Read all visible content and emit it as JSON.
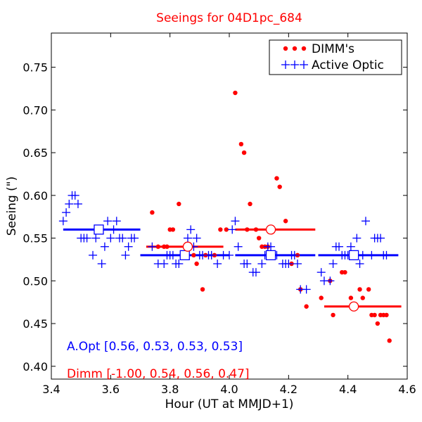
{
  "chart_data": {
    "type": "scatter",
    "title": "Seeings for 04D1pc_684",
    "xlabel": "Hour (UT at MMJD+1)",
    "ylabel": "Seeing (\")",
    "xlim": [
      3.4,
      4.6
    ],
    "ylim": [
      0.385,
      0.79
    ],
    "xticks": [
      "3.4",
      "3.6",
      "3.8",
      "4.0",
      "4.2",
      "4.4",
      "4.6"
    ],
    "xtick_values": [
      3.4,
      3.6,
      3.8,
      4.0,
      4.2,
      4.4,
      4.6
    ],
    "yticks": [
      "0.40",
      "0.45",
      "0.50",
      "0.55",
      "0.60",
      "0.65",
      "0.70",
      "0.75"
    ],
    "ytick_values": [
      0.4,
      0.45,
      0.5,
      0.55,
      0.6,
      0.65,
      0.7,
      0.75
    ],
    "colors": {
      "title": "#ff0000",
      "dimm": "#ff0000",
      "aopt": "#0000ff"
    },
    "legend": {
      "location": "top-right",
      "entries": [
        {
          "label": "DIMM's",
          "marker": "dot",
          "color": "#ff0000"
        },
        {
          "label": "Active Optic",
          "marker": "plus",
          "color": "#0000ff"
        }
      ]
    },
    "series": [
      {
        "name": "DIMM's",
        "marker": "dot",
        "color": "#ff0000",
        "x": [
          3.74,
          3.76,
          3.78,
          3.79,
          3.8,
          3.81,
          3.83,
          3.88,
          3.89,
          3.91,
          3.92,
          3.95,
          3.97,
          3.99,
          4.02,
          4.04,
          4.05,
          4.06,
          4.07,
          4.09,
          4.1,
          4.11,
          4.12,
          4.13,
          4.14,
          4.16,
          4.17,
          4.19,
          4.21,
          4.23,
          4.24,
          4.26,
          4.31,
          4.34,
          4.35,
          4.38,
          4.39,
          4.41,
          4.44,
          4.45,
          4.47,
          4.48,
          4.49,
          4.5,
          4.51,
          4.52,
          4.53,
          4.54
        ],
        "y": [
          0.58,
          0.54,
          0.54,
          0.54,
          0.56,
          0.56,
          0.59,
          0.53,
          0.52,
          0.49,
          0.53,
          0.53,
          0.56,
          0.56,
          0.72,
          0.66,
          0.65,
          0.56,
          0.59,
          0.56,
          0.55,
          0.54,
          0.54,
          0.54,
          0.53,
          0.62,
          0.61,
          0.57,
          0.52,
          0.53,
          0.49,
          0.47,
          0.48,
          0.5,
          0.46,
          0.51,
          0.51,
          0.48,
          0.49,
          0.48,
          0.49,
          0.46,
          0.46,
          0.45,
          0.46,
          0.46,
          0.46,
          0.43
        ]
      },
      {
        "name": "Active Optic",
        "marker": "plus",
        "color": "#0000ff",
        "x": [
          3.44,
          3.45,
          3.46,
          3.47,
          3.48,
          3.49,
          3.5,
          3.51,
          3.52,
          3.54,
          3.55,
          3.57,
          3.58,
          3.59,
          3.6,
          3.61,
          3.62,
          3.63,
          3.64,
          3.65,
          3.66,
          3.67,
          3.68,
          3.74,
          3.76,
          3.78,
          3.79,
          3.8,
          3.81,
          3.82,
          3.83,
          3.85,
          3.86,
          3.87,
          3.88,
          3.89,
          3.9,
          3.91,
          3.93,
          3.94,
          3.96,
          3.98,
          4.0,
          4.01,
          4.02,
          4.03,
          4.05,
          4.06,
          4.08,
          4.09,
          4.11,
          4.12,
          4.13,
          4.14,
          4.16,
          4.18,
          4.19,
          4.2,
          4.21,
          4.22,
          4.23,
          4.24,
          4.26,
          4.31,
          4.32,
          4.34,
          4.35,
          4.36,
          4.37,
          4.38,
          4.39,
          4.4,
          4.41,
          4.43,
          4.44,
          4.45,
          4.46,
          4.48,
          4.49,
          4.5,
          4.51,
          4.52,
          4.53
        ],
        "y": [
          0.57,
          0.58,
          0.59,
          0.6,
          0.6,
          0.59,
          0.55,
          0.55,
          0.55,
          0.53,
          0.55,
          0.52,
          0.54,
          0.57,
          0.55,
          0.56,
          0.57,
          0.55,
          0.55,
          0.53,
          0.54,
          0.55,
          0.55,
          0.54,
          0.52,
          0.52,
          0.53,
          0.53,
          0.53,
          0.52,
          0.52,
          0.53,
          0.55,
          0.56,
          0.54,
          0.55,
          0.53,
          0.53,
          0.53,
          0.53,
          0.52,
          0.53,
          0.53,
          0.56,
          0.57,
          0.54,
          0.52,
          0.52,
          0.51,
          0.51,
          0.52,
          0.53,
          0.54,
          0.54,
          0.53,
          0.52,
          0.52,
          0.52,
          0.53,
          0.53,
          0.52,
          0.49,
          0.49,
          0.51,
          0.5,
          0.5,
          0.52,
          0.54,
          0.54,
          0.53,
          0.53,
          0.53,
          0.54,
          0.55,
          0.52,
          0.53,
          0.57,
          0.53,
          0.55,
          0.55,
          0.55,
          0.53,
          0.53
        ]
      }
    ],
    "medians": {
      "aopt": {
        "color": "#0000ff",
        "marker": "square",
        "segments": [
          {
            "x0": 3.44,
            "x1": 3.7,
            "y": 0.56,
            "xc": 3.56
          },
          {
            "x0": 3.7,
            "x1": 4.0,
            "y": 0.53,
            "xc": 3.85
          },
          {
            "x0": 4.02,
            "x1": 4.29,
            "y": 0.53,
            "xc": 4.14
          },
          {
            "x0": 4.3,
            "x1": 4.57,
            "y": 0.53,
            "xc": 4.42
          }
        ]
      },
      "dimm": {
        "color": "#ff0000",
        "marker": "circle",
        "segments": [
          {
            "x0": 3.72,
            "x1": 3.98,
            "y": 0.54,
            "xc": 3.86
          },
          {
            "x0": 4.02,
            "x1": 4.29,
            "y": 0.56,
            "xc": 4.14
          },
          {
            "x0": 4.32,
            "x1": 4.58,
            "y": 0.47,
            "xc": 4.42
          }
        ]
      }
    },
    "annotations": {
      "aopt_summary": "A.Opt [0.56, 0.53, 0.53, 0.53]",
      "dimm_summary": "Dimm [-1.00, 0.54, 0.56, 0.47]"
    }
  }
}
